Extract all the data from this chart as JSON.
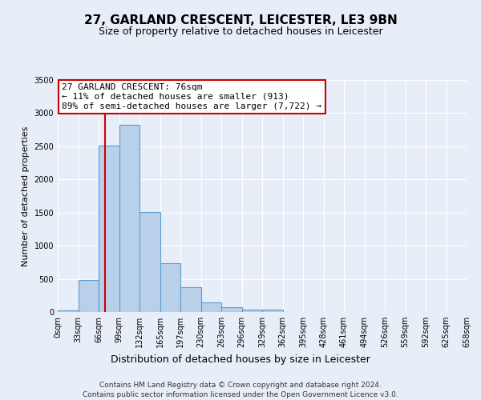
{
  "title": "27, GARLAND CRESCENT, LEICESTER, LE3 9BN",
  "subtitle": "Size of property relative to detached houses in Leicester",
  "xlabel": "Distribution of detached houses by size in Leicester",
  "ylabel": "Number of detached properties",
  "bin_labels": [
    "0sqm",
    "33sqm",
    "66sqm",
    "99sqm",
    "132sqm",
    "165sqm",
    "197sqm",
    "230sqm",
    "263sqm",
    "296sqm",
    "329sqm",
    "362sqm",
    "395sqm",
    "428sqm",
    "461sqm",
    "494sqm",
    "526sqm",
    "559sqm",
    "592sqm",
    "625sqm",
    "658sqm"
  ],
  "bar_values": [
    20,
    480,
    2510,
    2830,
    1510,
    740,
    380,
    150,
    70,
    40,
    40,
    5,
    0,
    0,
    0,
    0,
    0,
    0,
    0,
    0
  ],
  "bar_color": "#b8d0ea",
  "bar_edge_color": "#5a9fd4",
  "property_line_bin": 2.3,
  "annotation_text": "27 GARLAND CRESCENT: 76sqm\n← 11% of detached houses are smaller (913)\n89% of semi-detached houses are larger (7,722) →",
  "annotation_box_color": "#ffffff",
  "annotation_box_edge_color": "#cc0000",
  "red_line_color": "#cc0000",
  "ylim": [
    0,
    3500
  ],
  "yticks": [
    0,
    500,
    1000,
    1500,
    2000,
    2500,
    3000,
    3500
  ],
  "footer1": "Contains HM Land Registry data © Crown copyright and database right 2024.",
  "footer2": "Contains public sector information licensed under the Open Government Licence v3.0.",
  "bg_color": "#e8eef8",
  "plot_bg_color": "#e8eef8",
  "grid_color": "#ffffff",
  "title_fontsize": 11,
  "subtitle_fontsize": 9,
  "ylabel_fontsize": 8,
  "xlabel_fontsize": 9,
  "tick_fontsize": 7,
  "annot_fontsize": 8
}
